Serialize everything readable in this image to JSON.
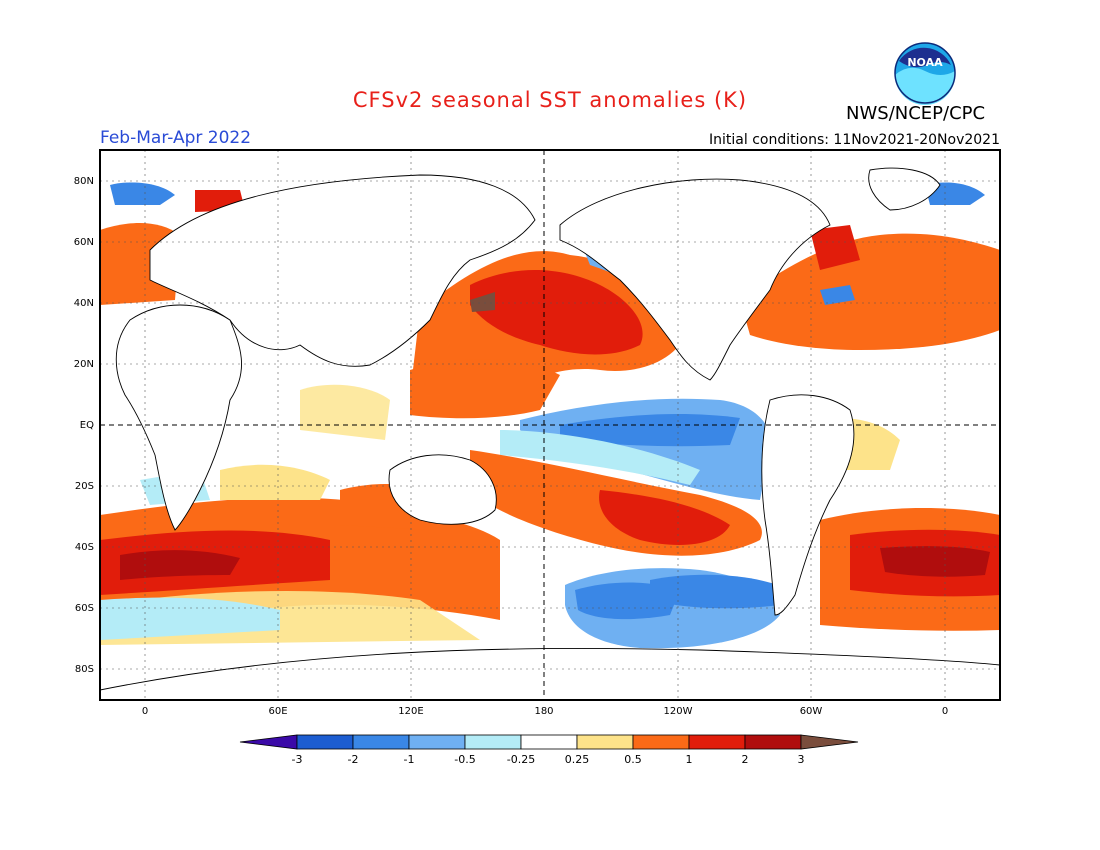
{
  "header": {
    "title": "CFSv2 seasonal SST anomalies (K)",
    "organization": "NWS/NCEP/CPC",
    "season": "Feb-Mar-Apr 2022",
    "initial_conditions": "Initial conditions: 11Nov2021-20Nov2021"
  },
  "logo": {
    "text": "NOAA",
    "icon": "noaa-logo-icon"
  },
  "map": {
    "lat_labels": [
      "80N",
      "60N",
      "40N",
      "20N",
      "EQ",
      "20S",
      "40S",
      "60S",
      "80S"
    ],
    "lon_labels": [
      "0",
      "60E",
      "120E",
      "180",
      "120W",
      "60W",
      "0"
    ]
  },
  "colorbar": {
    "labels": [
      "-3",
      "-2",
      "-1",
      "-0.5",
      "-0.25",
      "0.25",
      "0.5",
      "1",
      "2",
      "3"
    ],
    "colors": [
      "#3b0aa8",
      "#1c5dd1",
      "#3a87e6",
      "#6fb0f2",
      "#b4ecf7",
      "#ffffff",
      "#fde38a",
      "#fb6a17",
      "#e11d0b",
      "#b00d0d",
      "#7a4d3c"
    ]
  },
  "colors": {
    "title": "#e8201a",
    "season": "#2a4bd6"
  }
}
